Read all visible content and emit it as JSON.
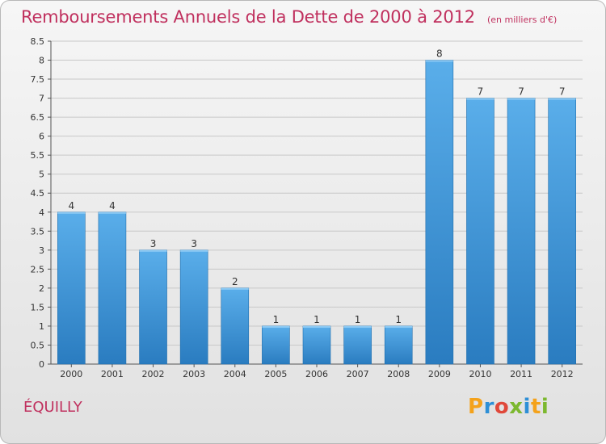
{
  "header": {
    "title": "Remboursements Annuels de la Dette de 2000 à 2012",
    "subtitle": "(en milliers d'€)"
  },
  "footer": {
    "commune": "ÉQUILLY",
    "logo_letters": [
      "P",
      "r",
      "o",
      "x",
      "i",
      "t",
      "i"
    ]
  },
  "colors": {
    "title": "#c0305e",
    "bar_top": "#5aaeea",
    "bar_bottom": "#2a7cc0",
    "bar_edge": "#1f6ead",
    "grid": "#c8c8c8"
  },
  "chart_data": {
    "type": "bar",
    "title": "Remboursements Annuels de la Dette de 2000 à 2012",
    "subtitle": "(en milliers d'€)",
    "xlabel": "",
    "ylabel": "",
    "categories": [
      "2000",
      "2001",
      "2002",
      "2003",
      "2004",
      "2005",
      "2006",
      "2007",
      "2008",
      "2009",
      "2010",
      "2011",
      "2012"
    ],
    "values": [
      4,
      4,
      3,
      3,
      2,
      1,
      1,
      1,
      1,
      8,
      7,
      7,
      7
    ],
    "data_labels": [
      "4",
      "4",
      "3",
      "3",
      "2",
      "1",
      "1",
      "1",
      "1",
      "8",
      "7",
      "7",
      "7"
    ],
    "ylim": [
      0,
      8.5
    ],
    "yticks": [
      0,
      0.5,
      1,
      1.5,
      2,
      2.5,
      3,
      3.5,
      4,
      4.5,
      5,
      5.5,
      6,
      6.5,
      7,
      7.5,
      8,
      8.5
    ],
    "ytick_labels": [
      "0",
      "0.5",
      "1",
      "1.5",
      "2",
      "2.5",
      "3",
      "3.5",
      "4",
      "4.5",
      "5",
      "5.5",
      "6",
      "6.5",
      "7",
      "7.5",
      "8",
      "8.5"
    ],
    "grid": true,
    "legend": "none"
  }
}
